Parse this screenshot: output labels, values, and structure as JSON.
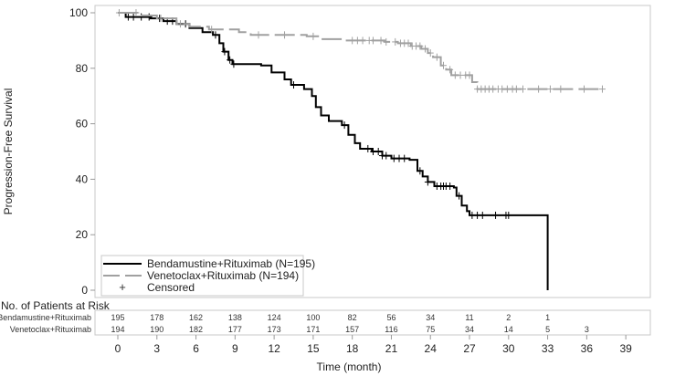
{
  "chart_data": {
    "type": "line",
    "subtype": "kaplan-meier",
    "title": "",
    "xlabel": "Time (month)",
    "ylabel": "Progression-Free Survival",
    "xlim": [
      0,
      40.5
    ],
    "ylim": [
      0,
      100
    ],
    "x_ticks": [
      0,
      3,
      6,
      9,
      12,
      15,
      18,
      21,
      24,
      27,
      30,
      33,
      36,
      39
    ],
    "y_ticks": [
      0,
      20,
      40,
      60,
      80,
      100
    ],
    "grid": false,
    "legend": {
      "placement": "bottom-left",
      "entries": [
        {
          "label": "Bendamustine+Rituximab (N=195)",
          "style": "solid",
          "color": "#000000"
        },
        {
          "label": "Venetoclax+Rituximab (N=194)",
          "style": "dashed",
          "color": "#a0a0a0"
        },
        {
          "label": "Censored",
          "style": "marker",
          "marker": "+"
        }
      ]
    },
    "series": [
      {
        "name": "Bendamustine+Rituximab (N=195)",
        "color": "#000000",
        "dash": "solid",
        "steps": [
          [
            0,
            100
          ],
          [
            0.6,
            98.5
          ],
          [
            2.5,
            98
          ],
          [
            3.5,
            97
          ],
          [
            4.5,
            96
          ],
          [
            5.5,
            94.5
          ],
          [
            6.5,
            93
          ],
          [
            7.3,
            92
          ],
          [
            7.8,
            89
          ],
          [
            8.1,
            86
          ],
          [
            8.5,
            83
          ],
          [
            8.8,
            81.5
          ],
          [
            11,
            81
          ],
          [
            11.8,
            78.5
          ],
          [
            12.8,
            76
          ],
          [
            13.3,
            74
          ],
          [
            14.3,
            72.5
          ],
          [
            14.9,
            70
          ],
          [
            15.2,
            66
          ],
          [
            15.6,
            63
          ],
          [
            16.2,
            61
          ],
          [
            17.2,
            59.5
          ],
          [
            17.7,
            56
          ],
          [
            18.2,
            53
          ],
          [
            18.6,
            51
          ],
          [
            19.5,
            50
          ],
          [
            20.3,
            48.5
          ],
          [
            21,
            47.5
          ],
          [
            22.4,
            47
          ],
          [
            23,
            43
          ],
          [
            23.4,
            41
          ],
          [
            23.8,
            39
          ],
          [
            24.3,
            37.5
          ],
          [
            25.8,
            37
          ],
          [
            26,
            34
          ],
          [
            26.4,
            30.5
          ],
          [
            26.8,
            28.5
          ],
          [
            27,
            27
          ],
          [
            33,
            27
          ],
          [
            33,
            0
          ]
        ],
        "censored": [
          0.8,
          1.2,
          1.8,
          2.4,
          3.2,
          3.8,
          4.2,
          5.2,
          7.5,
          8.2,
          8.6,
          8.9,
          13.5,
          17.4,
          19.2,
          19.6,
          20,
          20.3,
          20.6,
          21.2,
          21.6,
          22,
          23.2,
          23.8,
          24.5,
          24.8,
          25,
          25.2,
          25.5,
          26.2,
          27.2,
          27.6,
          28,
          29,
          29.8,
          30
        ]
      },
      {
        "name": "Venetoclax+Rituximab (N=194)",
        "color": "#a0a0a0",
        "dash": "dashed",
        "steps": [
          [
            0,
            100
          ],
          [
            1.5,
            99
          ],
          [
            3,
            98
          ],
          [
            4.5,
            96
          ],
          [
            5.5,
            95
          ],
          [
            7,
            94
          ],
          [
            9.3,
            93
          ],
          [
            10.2,
            92
          ],
          [
            14.5,
            91.5
          ],
          [
            15.5,
            90.5
          ],
          [
            17.5,
            90
          ],
          [
            20.5,
            89.5
          ],
          [
            21.5,
            89
          ],
          [
            22.5,
            88
          ],
          [
            23.3,
            87
          ],
          [
            23.8,
            85.5
          ],
          [
            24.2,
            84
          ],
          [
            24.8,
            81
          ],
          [
            25.2,
            79.5
          ],
          [
            25.6,
            77.5
          ],
          [
            27.2,
            75
          ],
          [
            27.6,
            72.5
          ],
          [
            37.2,
            72.5
          ]
        ],
        "censored": [
          0.1,
          1.4,
          3.3,
          4.8,
          7.2,
          10.8,
          12.8,
          15,
          18,
          18.4,
          18.8,
          19.3,
          19.6,
          20.2,
          20.6,
          21.3,
          21.7,
          22,
          22.3,
          22.6,
          22.9,
          23.2,
          23.6,
          24,
          24.5,
          25,
          25.5,
          25.9,
          26.3,
          26.7,
          27,
          27.6,
          27.9,
          28.2,
          28.5,
          28.8,
          29.2,
          29.5,
          29.9,
          30.3,
          30.6,
          31.1,
          32.3,
          33.2,
          34,
          35.8,
          37.2
        ]
      }
    ],
    "risk_table": {
      "title": "No. of Patients at Risk",
      "times": [
        0,
        3,
        6,
        9,
        12,
        15,
        18,
        21,
        24,
        27,
        30,
        33,
        36,
        39
      ],
      "rows": [
        {
          "label": "Bendamustine+Rituximab",
          "values": [
            195,
            178,
            162,
            138,
            124,
            100,
            82,
            56,
            34,
            11,
            2,
            1,
            null,
            null
          ]
        },
        {
          "label": "Venetoclax+Rituximab",
          "values": [
            194,
            190,
            182,
            177,
            173,
            171,
            157,
            116,
            75,
            34,
            14,
            5,
            3,
            null
          ]
        }
      ]
    }
  }
}
